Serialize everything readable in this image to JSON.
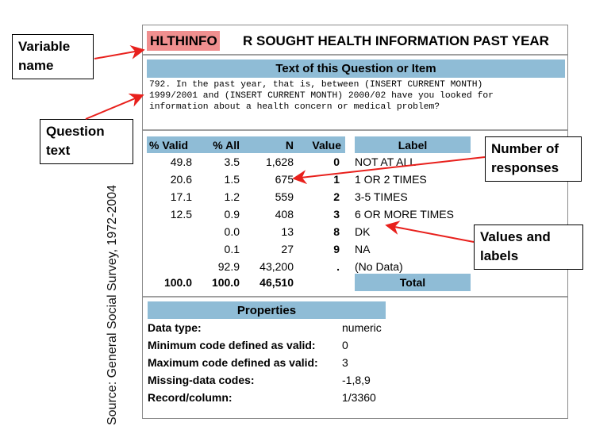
{
  "variable": {
    "name": "HLTHINFO",
    "title": "R SOUGHT HEALTH INFORMATION PAST YEAR"
  },
  "question": {
    "header": "Text of this Question or Item",
    "lines": [
      "792. In the past year, that is, between (INSERT CURRENT MONTH)",
      "1999/2001 and (INSERT CURRENT MONTH) 2000/02 have you looked for",
      "information about a health concern or medical problem?"
    ]
  },
  "frequency_table": {
    "columns": [
      "% Valid",
      "% All",
      "N",
      "Value",
      "Label"
    ],
    "rows": [
      {
        "valid": "49.8",
        "all": "3.5",
        "n": "1,628",
        "value": "0",
        "label": "NOT AT ALL"
      },
      {
        "valid": "20.6",
        "all": "1.5",
        "n": "675",
        "value": "1",
        "label": "1 OR 2 TIMES"
      },
      {
        "valid": "17.1",
        "all": "1.2",
        "n": "559",
        "value": "2",
        "label": "3-5 TIMES"
      },
      {
        "valid": "12.5",
        "all": "0.9",
        "n": "408",
        "value": "3",
        "label": "6 OR MORE TIMES"
      },
      {
        "valid": "",
        "all": "0.0",
        "n": "13",
        "value": "8",
        "label": "DK"
      },
      {
        "valid": "",
        "all": "0.1",
        "n": "27",
        "value": "9",
        "label": "NA"
      },
      {
        "valid": "",
        "all": "92.9",
        "n": "43,200",
        "value": ".",
        "label": "(No Data)"
      }
    ],
    "total": {
      "valid": "100.0",
      "all": "100.0",
      "n": "46,510",
      "label": "Total"
    }
  },
  "properties": {
    "header": "Properties",
    "items": [
      {
        "label": "Data type:",
        "value": "numeric"
      },
      {
        "label": "Minimum code defined as valid:",
        "value": "0"
      },
      {
        "label": "Maximum code defined as valid:",
        "value": "3"
      },
      {
        "label": "Missing-data codes:",
        "value": "-1,8,9"
      },
      {
        "label": "Record/column:",
        "value": "1/3360"
      }
    ]
  },
  "callouts": {
    "variable_name": [
      "Variable",
      "name"
    ],
    "question_text": [
      "Question",
      "text"
    ],
    "number_of_responses": [
      "Number of",
      "responses"
    ],
    "values_and_labels": [
      "Values and",
      "labels"
    ]
  },
  "source": "Source: General Social Survey, 1972-2004",
  "colors": {
    "highlight": "#f08f8f",
    "header_bar": "#8fbcd6",
    "arrow": "#e8201c"
  }
}
